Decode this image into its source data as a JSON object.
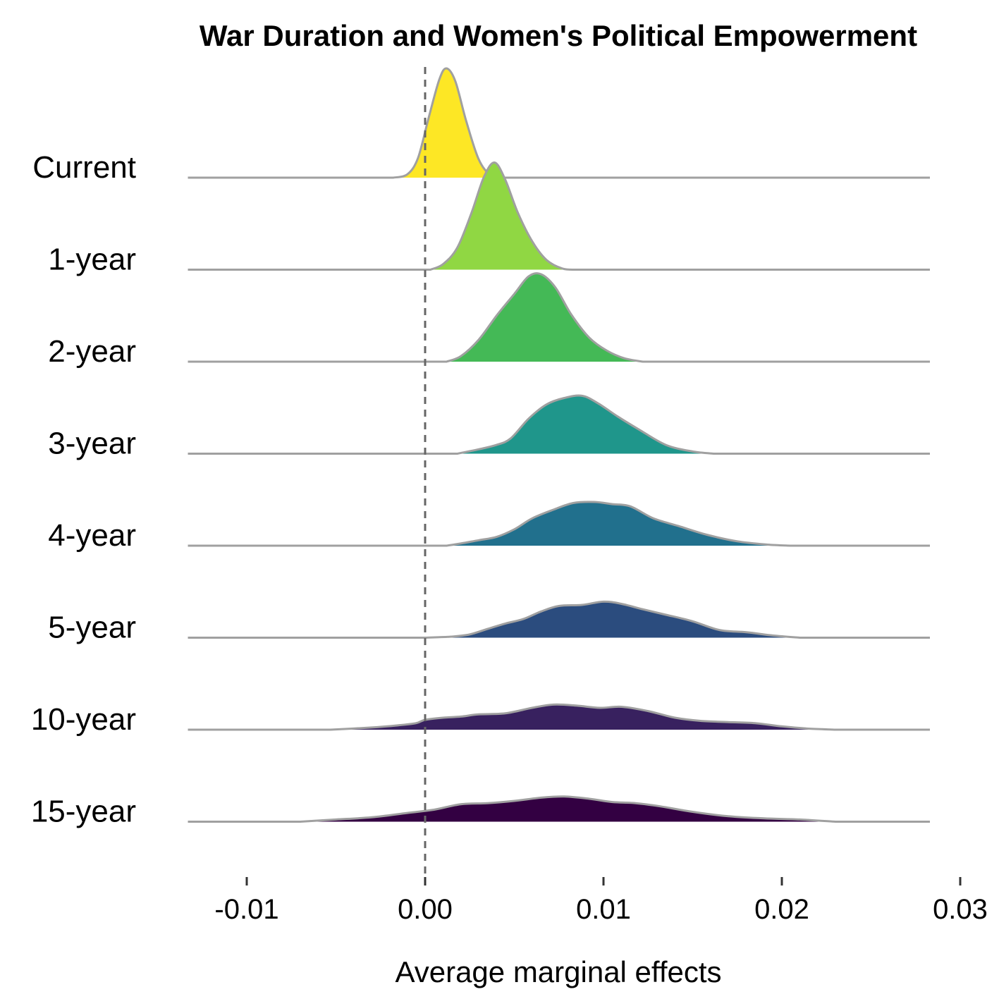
{
  "chart_data": {
    "type": "ridgeline",
    "title": "War Duration and Women's Political Empowerment",
    "xlabel": "Average marginal effects",
    "xlim": [
      -0.0133,
      0.0283
    ],
    "xticks": [
      -0.01,
      0.0,
      0.01,
      0.02,
      0.03
    ],
    "xtick_labels": [
      "-0.01",
      "0.00",
      "0.01",
      "0.02",
      "0.03"
    ],
    "reference_line": {
      "x": 0.0,
      "style": "dashed"
    },
    "outline_color": "#a0a0a0",
    "series": [
      {
        "name": "Current",
        "color": "#fde725",
        "density": [
          [
            -0.0018,
            0.0
          ],
          [
            -0.001,
            0.03
          ],
          [
            -0.0004,
            0.18
          ],
          [
            0.0002,
            0.55
          ],
          [
            0.0008,
            0.9
          ],
          [
            0.0012,
            1.0
          ],
          [
            0.0017,
            0.88
          ],
          [
            0.0023,
            0.52
          ],
          [
            0.003,
            0.17
          ],
          [
            0.0037,
            0.02
          ],
          [
            0.0045,
            0.0
          ]
        ]
      },
      {
        "name": "1-year",
        "color": "#90d743",
        "density": [
          [
            0.0003,
            0.0
          ],
          [
            0.001,
            0.05
          ],
          [
            0.0018,
            0.2
          ],
          [
            0.0026,
            0.52
          ],
          [
            0.0033,
            0.85
          ],
          [
            0.0039,
            0.98
          ],
          [
            0.0045,
            0.82
          ],
          [
            0.0052,
            0.52
          ],
          [
            0.006,
            0.26
          ],
          [
            0.0068,
            0.09
          ],
          [
            0.0077,
            0.01
          ],
          [
            0.0085,
            0.0
          ]
        ]
      },
      {
        "name": "2-year",
        "color": "#44b956",
        "density": [
          [
            0.0012,
            0.0
          ],
          [
            0.002,
            0.05
          ],
          [
            0.003,
            0.2
          ],
          [
            0.004,
            0.42
          ],
          [
            0.005,
            0.62
          ],
          [
            0.0058,
            0.78
          ],
          [
            0.0065,
            0.8
          ],
          [
            0.0073,
            0.68
          ],
          [
            0.0082,
            0.43
          ],
          [
            0.0092,
            0.22
          ],
          [
            0.0102,
            0.1
          ],
          [
            0.0112,
            0.03
          ],
          [
            0.0122,
            0.0
          ]
        ]
      },
      {
        "name": "3-year",
        "color": "#1f968b",
        "density": [
          [
            0.0018,
            0.0
          ],
          [
            0.003,
            0.04
          ],
          [
            0.004,
            0.08
          ],
          [
            0.0048,
            0.14
          ],
          [
            0.0058,
            0.32
          ],
          [
            0.0068,
            0.45
          ],
          [
            0.0078,
            0.51
          ],
          [
            0.0088,
            0.53
          ],
          [
            0.0097,
            0.46
          ],
          [
            0.0108,
            0.34
          ],
          [
            0.012,
            0.22
          ],
          [
            0.0135,
            0.08
          ],
          [
            0.015,
            0.02
          ],
          [
            0.0162,
            0.0
          ]
        ]
      },
      {
        "name": "4-year",
        "color": "#21708d",
        "density": [
          [
            0.0012,
            0.0
          ],
          [
            0.002,
            0.02
          ],
          [
            0.003,
            0.05
          ],
          [
            0.004,
            0.08
          ],
          [
            0.005,
            0.15
          ],
          [
            0.006,
            0.25
          ],
          [
            0.0072,
            0.33
          ],
          [
            0.0083,
            0.39
          ],
          [
            0.0095,
            0.4
          ],
          [
            0.0105,
            0.38
          ],
          [
            0.0115,
            0.36
          ],
          [
            0.0128,
            0.25
          ],
          [
            0.0142,
            0.18
          ],
          [
            0.0158,
            0.1
          ],
          [
            0.0175,
            0.04
          ],
          [
            0.0192,
            0.01
          ],
          [
            0.0205,
            0.0
          ]
        ]
      },
      {
        "name": "5-year",
        "color": "#2b4c7e",
        "density": [
          [
            0.0,
            0.0
          ],
          [
            0.0015,
            0.01
          ],
          [
            0.0025,
            0.03
          ],
          [
            0.0035,
            0.08
          ],
          [
            0.0045,
            0.13
          ],
          [
            0.0055,
            0.17
          ],
          [
            0.0065,
            0.24
          ],
          [
            0.0075,
            0.29
          ],
          [
            0.0088,
            0.3
          ],
          [
            0.01,
            0.33
          ],
          [
            0.011,
            0.31
          ],
          [
            0.0122,
            0.26
          ],
          [
            0.0135,
            0.21
          ],
          [
            0.015,
            0.15
          ],
          [
            0.0165,
            0.07
          ],
          [
            0.018,
            0.05
          ],
          [
            0.0195,
            0.02
          ],
          [
            0.021,
            0.0
          ]
        ]
      },
      {
        "name": "10-year",
        "color": "#38215f",
        "density": [
          [
            -0.0053,
            0.0
          ],
          [
            -0.003,
            0.02
          ],
          [
            -0.0015,
            0.04
          ],
          [
            -0.0005,
            0.06
          ],
          [
            0.0,
            0.09
          ],
          [
            0.001,
            0.11
          ],
          [
            0.002,
            0.12
          ],
          [
            0.003,
            0.14
          ],
          [
            0.0045,
            0.15
          ],
          [
            0.006,
            0.2
          ],
          [
            0.0072,
            0.23
          ],
          [
            0.0085,
            0.22
          ],
          [
            0.0098,
            0.2
          ],
          [
            0.011,
            0.21
          ],
          [
            0.0125,
            0.17
          ],
          [
            0.014,
            0.11
          ],
          [
            0.0155,
            0.08
          ],
          [
            0.017,
            0.07
          ],
          [
            0.0185,
            0.06
          ],
          [
            0.02,
            0.03
          ],
          [
            0.0215,
            0.01
          ],
          [
            0.023,
            0.0
          ]
        ]
      },
      {
        "name": "15-year",
        "color": "#330042",
        "density": [
          [
            -0.007,
            0.0
          ],
          [
            -0.005,
            0.02
          ],
          [
            -0.003,
            0.04
          ],
          [
            -0.001,
            0.08
          ],
          [
            0.0005,
            0.11
          ],
          [
            0.002,
            0.16
          ],
          [
            0.0035,
            0.17
          ],
          [
            0.005,
            0.19
          ],
          [
            0.0065,
            0.22
          ],
          [
            0.0078,
            0.23
          ],
          [
            0.0092,
            0.21
          ],
          [
            0.0105,
            0.18
          ],
          [
            0.0118,
            0.17
          ],
          [
            0.0132,
            0.14
          ],
          [
            0.015,
            0.09
          ],
          [
            0.017,
            0.05
          ],
          [
            0.019,
            0.03
          ],
          [
            0.021,
            0.02
          ],
          [
            0.023,
            0.0
          ]
        ]
      }
    ]
  }
}
